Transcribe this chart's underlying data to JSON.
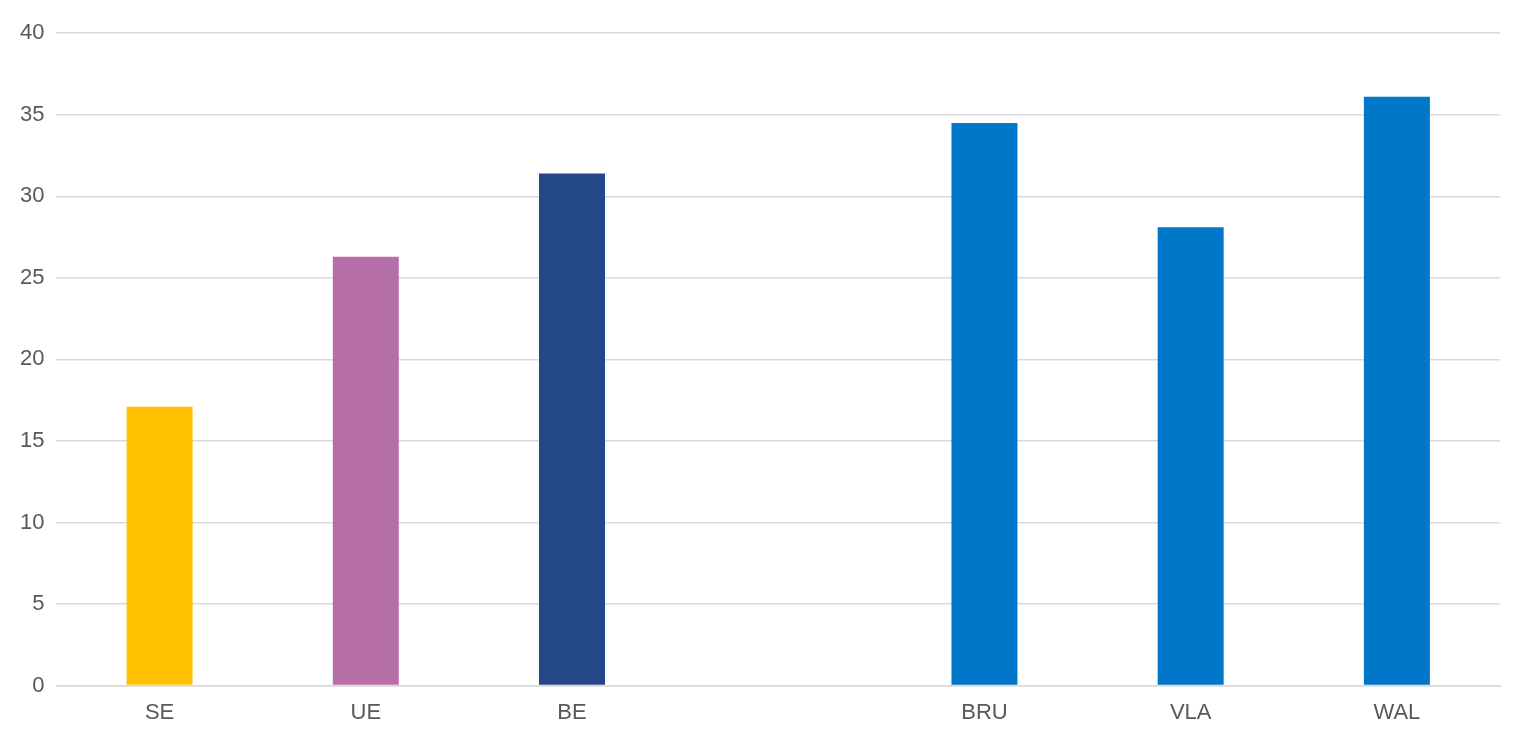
{
  "chart_data": {
    "type": "bar",
    "categories": [
      "SE",
      "UE",
      "BE",
      null,
      "BRU",
      "VLA",
      "WAL"
    ],
    "values": [
      17.1,
      26.3,
      31.4,
      null,
      34.5,
      28.1,
      36.1
    ],
    "colors": [
      "#ffc000",
      "#b56ea8",
      "#234787",
      "#0077c8",
      "#0077c8",
      "#0077c8",
      "#0077c8"
    ],
    "ylim": [
      0,
      40
    ],
    "yticks": [
      0,
      5,
      10,
      15,
      20,
      25,
      30,
      35,
      40
    ],
    "grid": "y",
    "legend": false
  }
}
